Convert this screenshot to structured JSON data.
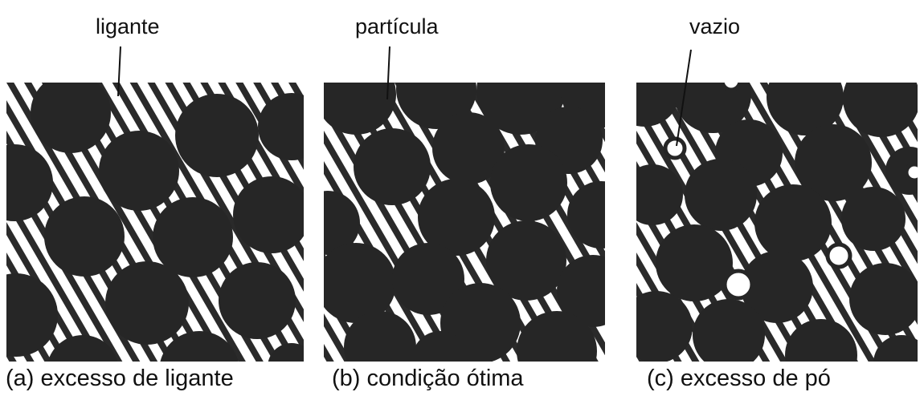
{
  "callouts": {
    "binder": "ligante",
    "particle": "partícula",
    "void": "vazio"
  },
  "panels": [
    {
      "caption": "(a) excesso de ligante"
    },
    {
      "caption": "(b) condição ótima"
    },
    {
      "caption": "(c) excesso de pó"
    }
  ],
  "colors": {
    "particle": "#262626",
    "binder_hatch": "#2a2a2a",
    "background": "#ffffff"
  }
}
